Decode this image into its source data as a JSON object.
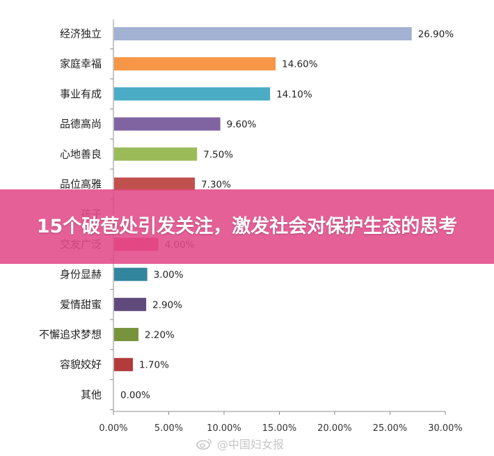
{
  "chart_data": {
    "type": "bar",
    "orientation": "horizontal",
    "categories": [
      "经济独立",
      "家庭幸福",
      "事业有成",
      "品德高尚",
      "心地善良",
      "品位高雅",
      "孩子",
      "交友广泛",
      "身份显赫",
      "爱情甜蜜",
      "不懈追求梦想",
      "容貌姣好",
      "其他"
    ],
    "values": [
      26.9,
      14.6,
      14.1,
      9.6,
      7.5,
      7.3,
      null,
      4.0,
      3.0,
      2.9,
      2.2,
      1.7,
      0.0
    ],
    "value_labels": [
      "26.90%",
      "14.60%",
      "14.10%",
      "9.60%",
      "7.50%",
      "7.30%",
      "",
      "4.00%",
      "3.00%",
      "2.90%",
      "2.20%",
      "1.70%",
      "0.00%"
    ],
    "colors": [
      "#a3b1d3",
      "#f79646",
      "#4bacc6",
      "#8064a2",
      "#9bbb59",
      "#c0504d",
      "#e45b7a",
      "#e2325a",
      "#31859c",
      "#604a7b",
      "#77933c",
      "#b33b3b",
      "#cccccc"
    ],
    "x_ticks": [
      "0.00%",
      "5.00%",
      "10.00%",
      "15.00%",
      "20.00%",
      "25.00%",
      "30.00%"
    ],
    "xlim": [
      0,
      30
    ],
    "grid": false,
    "legend": "none",
    "title": "",
    "xlabel": "",
    "ylabel": ""
  },
  "banner": {
    "title": "15个破苞处引发关注，激发社会对保护生态的思考"
  },
  "watermark": {
    "text": "@中国妇女报"
  }
}
